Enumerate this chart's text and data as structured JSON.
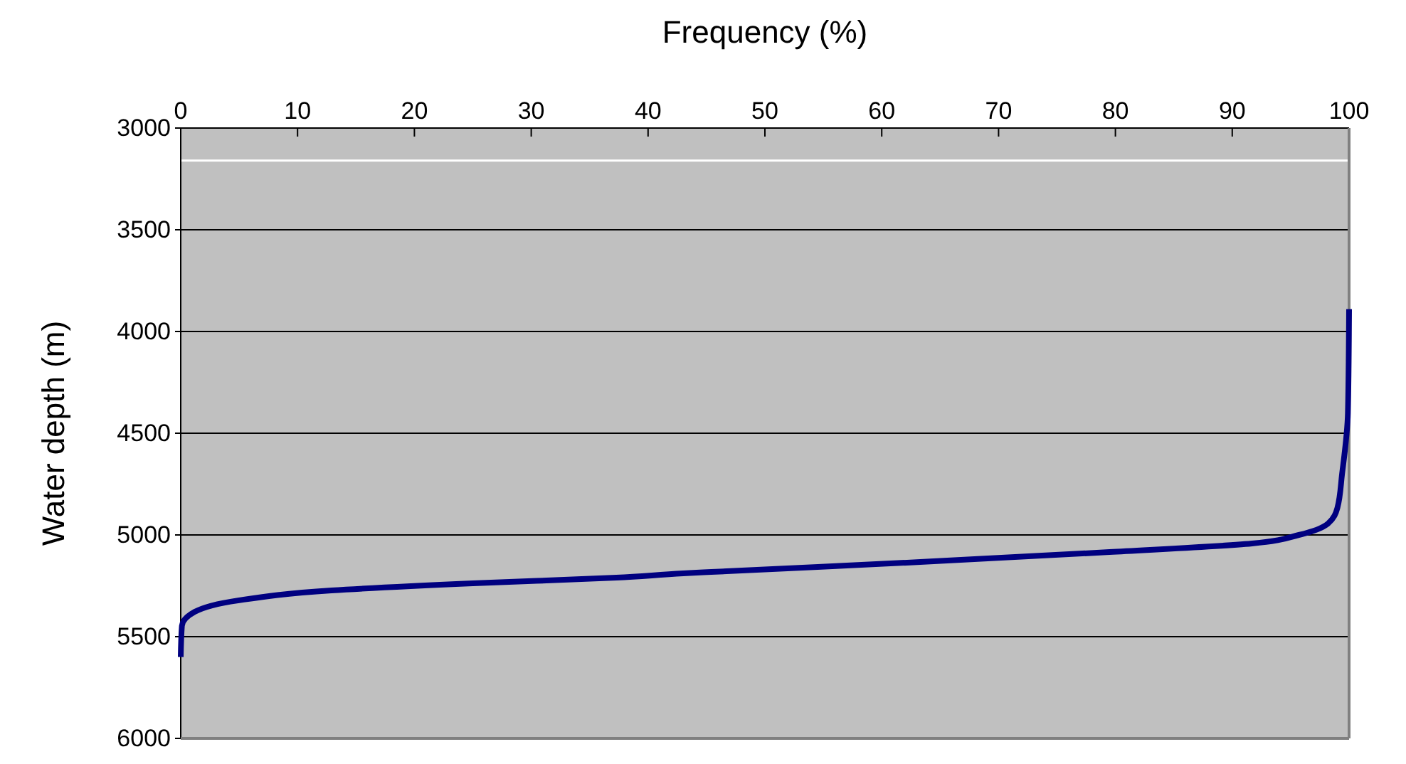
{
  "chart_data": {
    "type": "line",
    "xlabel": "Frequency (%)",
    "ylabel": "Water depth (m)",
    "x": [
      0,
      0.1,
      1.2,
      4.9,
      12.9,
      25,
      37.3,
      43,
      45.4,
      63.3,
      79.5,
      91.7,
      95.7,
      98.2,
      99,
      99.4,
      99.9,
      100
    ],
    "series": [
      {
        "color": "#000080",
        "values": [
          5600,
          5447,
          5378,
          5322,
          5273,
          5238,
          5210,
          5189,
          5182,
          5133,
          5084,
          5042,
          5000,
          4944,
          4867,
          4700,
          4400,
          3890
        ]
      }
    ],
    "xlim": [
      0,
      100
    ],
    "xticks": [
      0,
      10,
      20,
      30,
      40,
      50,
      60,
      70,
      80,
      90,
      100
    ],
    "ylim": [
      6000,
      3000
    ],
    "yticks": [
      3000,
      3500,
      4000,
      4500,
      5000,
      5500,
      6000
    ],
    "grid": "y",
    "marker": "none",
    "line_style": "solid",
    "ref_lines": [
      {
        "axis": "y",
        "value": 3160,
        "label": null,
        "color": "#ffffff"
      }
    ]
  }
}
